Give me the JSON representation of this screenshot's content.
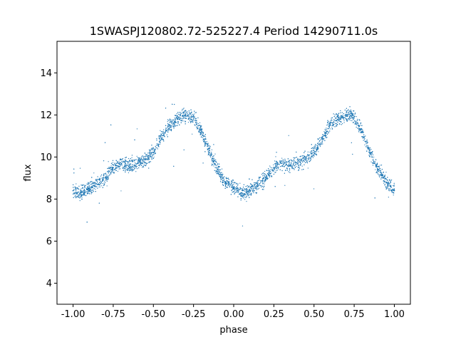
{
  "chart_data": {
    "type": "scatter",
    "title": "1SWASPJ120802.72-525227.4 Period 14290711.0s",
    "xlabel": "phase",
    "ylabel": "flux",
    "xlim": [
      -1.1,
      1.1
    ],
    "ylim": [
      3.0,
      15.5
    ],
    "xticks": [
      "-1.00",
      "-0.75",
      "-0.50",
      "-0.25",
      "0.00",
      "0.25",
      "0.50",
      "0.75",
      "1.00"
    ],
    "xtick_values": [
      -1.0,
      -0.75,
      -0.5,
      -0.25,
      0.0,
      0.25,
      0.5,
      0.75,
      1.0
    ],
    "yticks": [
      "4",
      "6",
      "8",
      "10",
      "12",
      "14"
    ],
    "ytick_values": [
      4,
      6,
      8,
      10,
      12,
      14
    ],
    "grid": false,
    "marker_color": "#1f77b4",
    "series": [
      {
        "x": [
          -1.0,
          -0.95,
          -0.9,
          -0.85,
          -0.8,
          -0.75,
          -0.7,
          -0.65,
          -0.6,
          -0.55,
          -0.5,
          -0.45,
          -0.4,
          -0.35,
          -0.3,
          -0.25,
          -0.2,
          -0.15,
          -0.1,
          -0.05,
          0.0,
          0.05,
          0.1,
          0.15,
          0.2,
          0.25,
          0.3,
          0.35,
          0.4,
          0.45,
          0.5,
          0.55,
          0.6,
          0.65,
          0.7,
          0.75,
          0.8,
          0.85,
          0.9,
          0.95,
          1.0
        ],
        "y": [
          8.4,
          8.3,
          8.5,
          8.7,
          9.0,
          9.5,
          9.7,
          9.6,
          9.7,
          9.9,
          10.2,
          10.9,
          11.5,
          11.8,
          12.0,
          11.9,
          11.2,
          10.2,
          9.4,
          8.8,
          8.5,
          8.3,
          8.4,
          8.7,
          9.0,
          9.5,
          9.7,
          9.6,
          9.7,
          9.9,
          10.2,
          10.9,
          11.5,
          11.8,
          12.0,
          11.9,
          11.2,
          10.2,
          9.4,
          8.8,
          8.4
        ]
      }
    ]
  }
}
